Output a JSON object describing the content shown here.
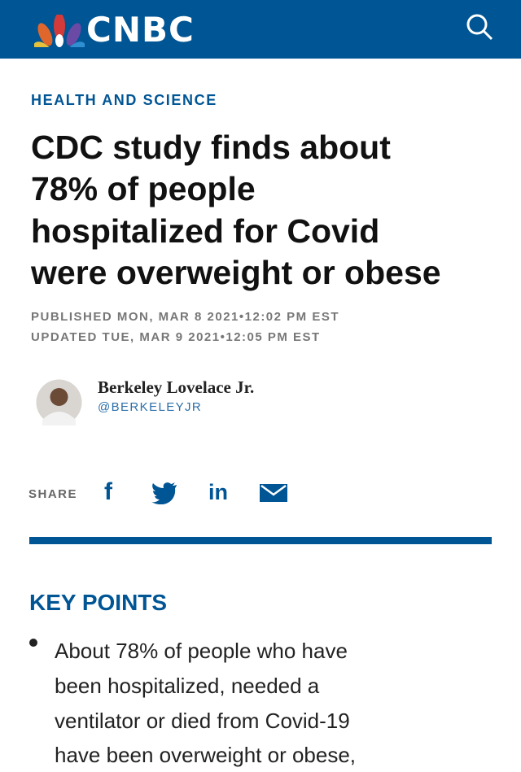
{
  "header": {
    "logo": "CNBC"
  },
  "article": {
    "section": "HEALTH AND SCIENCE",
    "headline_lines": [
      "CDC study finds about",
      "78% of people",
      "hospitalized for Covid",
      "were overweight or obese"
    ],
    "published": "PUBLISHED MON, MAR 8 2021•12:02 PM EST",
    "updated": "UPDATED TUE, MAR 9 2021•12:05 PM EST",
    "author": {
      "name": "Berkeley Lovelace Jr.",
      "handle": "@BERKELEYJR"
    },
    "share": {
      "label": "SHARE",
      "facebook": "f",
      "linkedin": "in"
    },
    "key_points": {
      "title": "KEY POINTS",
      "items": [
        {
          "lines": [
            "About 78% of people who have",
            "been hospitalized, needed a",
            "ventilator or died from Covid-19",
            "have been overweight or obese,"
          ]
        }
      ]
    }
  }
}
